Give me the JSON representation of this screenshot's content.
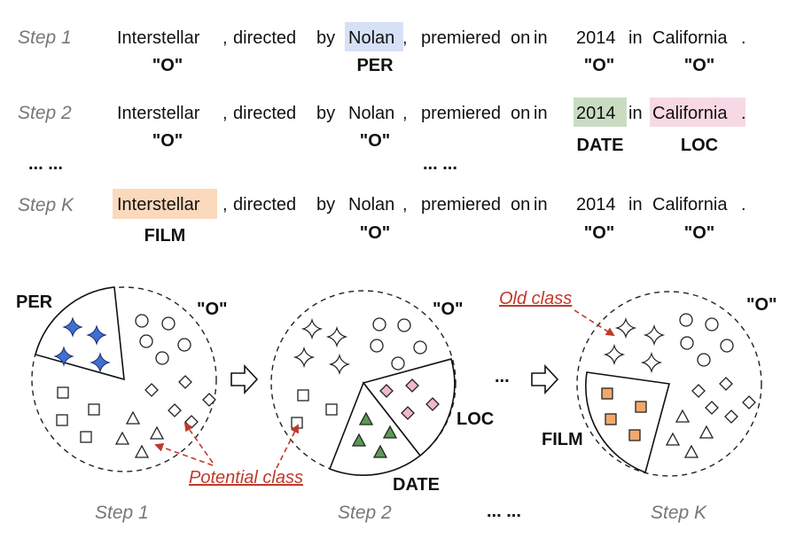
{
  "rows": [
    {
      "step": "Step 1",
      "tokens": [
        "Interstellar",
        ",",
        "directed",
        "by",
        "Nolan",
        ",",
        "premiered",
        "on",
        "in",
        "2014",
        "in",
        "California",
        "."
      ],
      "labels": {
        "t0": "\"O\"",
        "t4": "PER",
        "t9": "\"O\"",
        "t11": "\"O\""
      }
    },
    {
      "step": "Step 2",
      "tokens": [
        "Interstellar",
        ",",
        "directed",
        "by",
        "Nolan",
        ",",
        "premiered",
        "on",
        "in",
        "2014",
        "in",
        "California",
        "."
      ],
      "labels": {
        "t0": "\"O\"",
        "t4": "\"O\"",
        "t9": "DATE",
        "t11": "LOC"
      }
    },
    {
      "step": "Step K",
      "tokens": [
        "Interstellar",
        ",",
        "directed",
        "by",
        "Nolan",
        ",",
        "premiered",
        "on",
        "in",
        "2014",
        "in",
        "California",
        "."
      ],
      "labels": {
        "t0": "FILM",
        "t4": "\"O\"",
        "t9": "\"O\"",
        "t11": "\"O\""
      }
    }
  ],
  "ellipsis": "... ...",
  "ellipsis_short": "...",
  "circles": {
    "c1": {
      "per": "PER",
      "o": "\"O\""
    },
    "c2": {
      "o": "\"O\"",
      "loc": "LOC",
      "date": "DATE"
    },
    "c3": {
      "o": "\"O\"",
      "film": "FILM"
    }
  },
  "annotations": {
    "old_class": "Old class",
    "potential_class": "Potential class"
  },
  "steps_bottom": [
    "Step 1",
    "Step 2",
    "Step K"
  ],
  "colors": {
    "per": "#d6e1f7",
    "date": "#c9dcc2",
    "loc": "#f6d9e4",
    "film": "#fbd9bc",
    "star_blue": "#3f6fd1",
    "diamond_pink": "#f1b7cf",
    "triangle_green": "#5a9a54",
    "square_orange": "#f2a86a",
    "red": "#c0392b"
  }
}
